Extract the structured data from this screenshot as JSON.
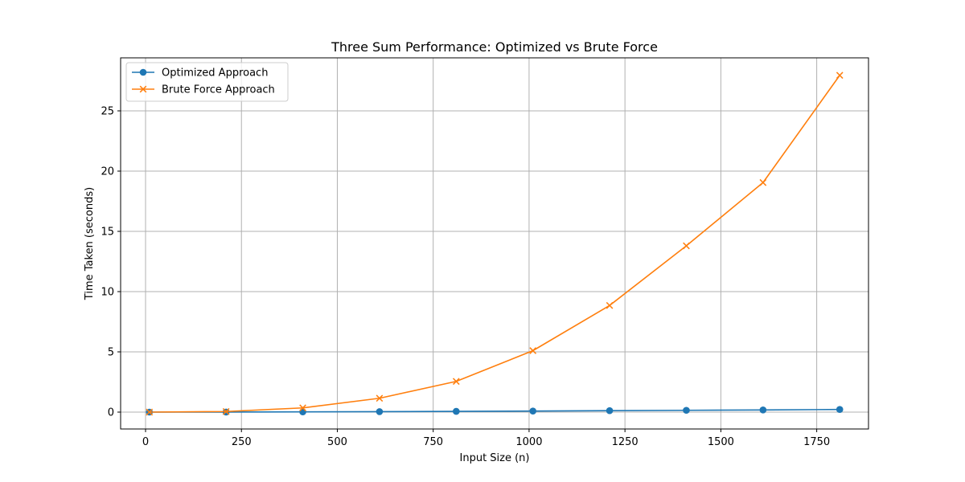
{
  "chart_data": {
    "type": "line",
    "title": "Three Sum Performance: Optimized vs Brute Force",
    "xlabel": "Input Size (n)",
    "ylabel": "Time Taken (seconds)",
    "xlim": [
      -65,
      1885
    ],
    "ylim": [
      -1.4,
      29.4
    ],
    "xticks": [
      0,
      250,
      500,
      750,
      1000,
      1250,
      1500,
      1750
    ],
    "xtick_labels": [
      "0",
      "250",
      "500",
      "750",
      "1000",
      "1250",
      "1500",
      "1750"
    ],
    "yticks": [
      0,
      5,
      10,
      15,
      20,
      25
    ],
    "ytick_labels": [
      "0",
      "5",
      "10",
      "15",
      "20",
      "25"
    ],
    "grid": true,
    "legend_position": "top-left",
    "x": [
      10,
      210,
      410,
      610,
      810,
      1010,
      1210,
      1410,
      1610,
      1810
    ],
    "series": [
      {
        "name": "Optimized Approach",
        "color": "#1f77b4",
        "marker": "circle",
        "values": [
          0.0,
          0.005,
          0.02,
          0.04,
          0.06,
          0.09,
          0.12,
          0.15,
          0.18,
          0.22
        ]
      },
      {
        "name": "Brute Force Approach",
        "color": "#ff7f0e",
        "marker": "x",
        "values": [
          0.0,
          0.05,
          0.35,
          1.15,
          2.55,
          5.1,
          8.85,
          13.8,
          19.05,
          27.95
        ]
      }
    ]
  }
}
